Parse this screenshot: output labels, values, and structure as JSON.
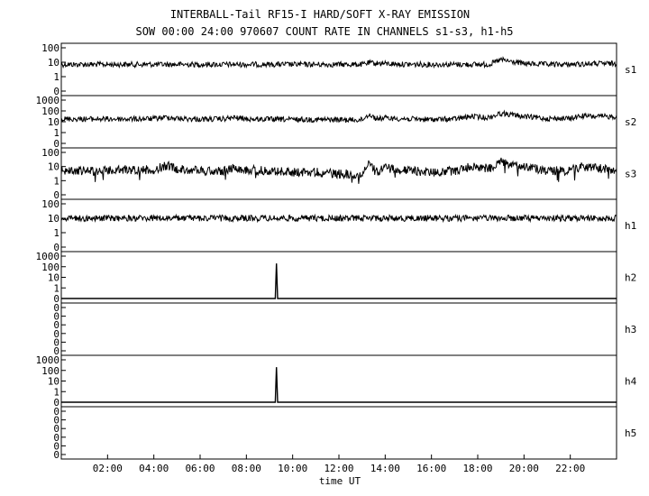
{
  "chart_data": {
    "type": "line",
    "title": "INTERBALL-Tail RF15-I HARD/SOFT X-RAY EMISSION",
    "subtitle": "SOW 00:00 24:00 970607  COUNT RATE IN CHANNELS s1-s3, h1-h5",
    "xlabel": "time UT",
    "x_unit": "hours UT",
    "xlim": [
      0,
      24
    ],
    "x_ticks": [
      {
        "value": 2,
        "label": "02:00"
      },
      {
        "value": 4,
        "label": "04:00"
      },
      {
        "value": 6,
        "label": "06:00"
      },
      {
        "value": 8,
        "label": "08:00"
      },
      {
        "value": 10,
        "label": "10:00"
      },
      {
        "value": 12,
        "label": "12:00"
      },
      {
        "value": 14,
        "label": "14:00"
      },
      {
        "value": 16,
        "label": "16:00"
      },
      {
        "value": 18,
        "label": "18:00"
      },
      {
        "value": 20,
        "label": "20:00"
      },
      {
        "value": 22,
        "label": "22:00"
      }
    ],
    "y_scale": "log",
    "panels": [
      {
        "name": "s1",
        "y_tick_labels": [
          "100",
          "10",
          "1",
          "0"
        ],
        "series": [
          {
            "x": [
              0,
              1,
              2,
              3,
              4,
              5,
              6,
              7,
              8,
              9,
              10,
              11,
              12,
              13,
              13.3,
              14,
              15,
              16,
              17,
              18,
              18.5,
              19,
              19.3,
              20,
              21,
              22,
              23,
              24
            ],
            "y": [
              7,
              7,
              7,
              7,
              7,
              7,
              7,
              7,
              7,
              7,
              7,
              7,
              7,
              7,
              9,
              8,
              7,
              7,
              7,
              7,
              7,
              15,
              12,
              8,
              7,
              7,
              8,
              8
            ]
          }
        ]
      },
      {
        "name": "s2",
        "y_tick_labels": [
          "1000",
          "100",
          "10",
          "1",
          "0"
        ],
        "series": [
          {
            "x": [
              0,
              1,
              2,
              3,
              4,
              4.6,
              5,
              6,
              7,
              7.5,
              8,
              9,
              10,
              11,
              12,
              13,
              13.3,
              13.6,
              14,
              15,
              16,
              17,
              17.8,
              18.2,
              18.5,
              19,
              19.3,
              20,
              21,
              22,
              22.5,
              23,
              24
            ],
            "y": [
              18,
              18,
              18,
              18,
              19,
              27,
              20,
              17,
              18,
              24,
              18,
              17,
              16,
              16,
              15,
              15,
              50,
              20,
              22,
              18,
              16,
              18,
              32,
              25,
              25,
              60,
              50,
              30,
              20,
              20,
              35,
              30,
              30
            ]
          }
        ]
      },
      {
        "name": "s3",
        "y_tick_labels": [
          "100",
          "10",
          "1",
          "0"
        ],
        "series": [
          {
            "x": [
              0,
              1,
              2,
              3,
              4,
              4.6,
              5,
              6,
              7,
              7.5,
              8,
              9,
              10,
              11,
              12,
              13,
              13.3,
              13.6,
              14,
              15,
              16,
              17,
              17.8,
              18.2,
              18.5,
              19,
              19.3,
              20,
              21,
              22,
              22.5,
              23,
              24
            ],
            "y": [
              5,
              5,
              5,
              6,
              6,
              12,
              7,
              5,
              5,
              9,
              6,
              5,
              4,
              4,
              3,
              3,
              18,
              4,
              8,
              5,
              4,
              5,
              11,
              8,
              7,
              25,
              14,
              10,
              5,
              6,
              10,
              8,
              6
            ]
          }
        ]
      },
      {
        "name": "h1",
        "y_tick_labels": [
          "100",
          "10",
          "1",
          "0"
        ],
        "series": [
          {
            "x": [
              0,
              24
            ],
            "y": [
              10,
              10
            ]
          }
        ]
      },
      {
        "name": "h2",
        "y_tick_labels": [
          "1000",
          "100",
          "10",
          "1",
          "0"
        ],
        "series": [
          {
            "x": [
              0,
              9.25,
              9.3,
              9.35,
              24
            ],
            "y": [
              0,
              0,
              200,
              0,
              0
            ]
          }
        ]
      },
      {
        "name": "h3",
        "y_tick_labels": [
          "0",
          "0",
          "0",
          "0",
          "0",
          "0"
        ],
        "series": [
          {
            "x": [
              0,
              24
            ],
            "y": [
              0,
              0
            ]
          }
        ]
      },
      {
        "name": "h4",
        "y_tick_labels": [
          "1000",
          "100",
          "10",
          "1",
          "0"
        ],
        "series": [
          {
            "x": [
              0,
              9.25,
              9.3,
              9.35,
              24
            ],
            "y": [
              0,
              0,
              200,
              0,
              0
            ]
          }
        ]
      },
      {
        "name": "h5",
        "y_tick_labels": [
          "0",
          "0",
          "0",
          "0",
          "0",
          "0"
        ],
        "series": [
          {
            "x": [
              0,
              24
            ],
            "y": [
              0,
              0
            ]
          }
        ]
      }
    ]
  }
}
